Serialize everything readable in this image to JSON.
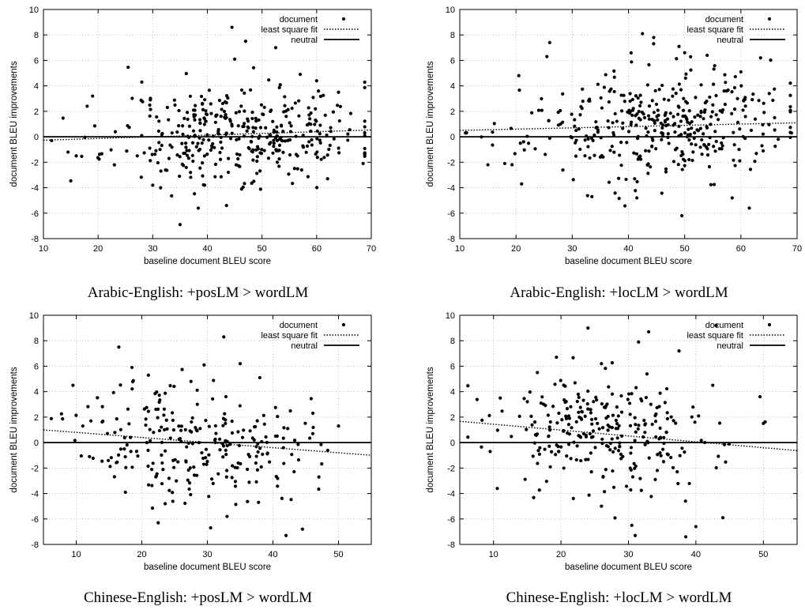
{
  "chart_data": [
    {
      "type": "scatter",
      "caption": "Arabic-English: +posLM > wordLM",
      "xlabel": "baseline document BLEU score",
      "ylabel": "document BLEU improvements",
      "xlim": [
        10,
        70
      ],
      "ylim": [
        -8,
        10
      ],
      "xticks": [
        10,
        20,
        30,
        40,
        50,
        60,
        70
      ],
      "yticks": [
        -8,
        -6,
        -4,
        -2,
        0,
        2,
        4,
        6,
        8,
        10
      ],
      "grid": true,
      "legend_position": "top-right",
      "legend": [
        "document",
        "least square fit",
        "neutral"
      ],
      "fit": {
        "slope": 0.0133,
        "intercept": -0.4
      },
      "seed": 11,
      "n_points": 400,
      "x_mean": 46,
      "x_sd": 11.5,
      "y_sd": 1.9,
      "highlights": [
        [
          44.5,
          8.6
        ],
        [
          52.5,
          7.0
        ],
        [
          47,
          7.5
        ],
        [
          45,
          6.1
        ],
        [
          28,
          4.3
        ],
        [
          57,
          4.9
        ],
        [
          35,
          -6.9
        ],
        [
          43.5,
          -5.4
        ],
        [
          19,
          3.2
        ],
        [
          60,
          4.4
        ],
        [
          39.5,
          -3.8
        ],
        [
          30,
          -3.8
        ],
        [
          68.5,
          -2.1
        ],
        [
          62,
          -3.3
        ],
        [
          11.5,
          -0.3
        ],
        [
          14.5,
          -1.2
        ],
        [
          16,
          -1.5
        ],
        [
          18,
          2.4
        ],
        [
          64,
          3.5
        ],
        [
          48.5,
          -3.5
        ]
      ]
    },
    {
      "type": "scatter",
      "caption": "Arabic-English: +locLM > wordLM",
      "xlabel": "baseline document BLEU score",
      "ylabel": "document BLEU improvements",
      "xlim": [
        10,
        70
      ],
      "ylim": [
        -8,
        10
      ],
      "xticks": [
        10,
        20,
        30,
        40,
        50,
        60,
        70
      ],
      "yticks": [
        -8,
        -6,
        -4,
        -2,
        0,
        2,
        4,
        6,
        8,
        10
      ],
      "grid": true,
      "legend_position": "top-right",
      "legend": [
        "document",
        "least square fit",
        "neutral"
      ],
      "fit": {
        "slope": 0.01,
        "intercept": 0.4
      },
      "seed": 23,
      "n_points": 400,
      "x_mean": 45,
      "x_sd": 11.5,
      "y_sd": 2.1,
      "highlights": [
        [
          42.5,
          8.1
        ],
        [
          44.5,
          7.8
        ],
        [
          26,
          7.4
        ],
        [
          49,
          7.1
        ],
        [
          50,
          6.6
        ],
        [
          54,
          6.4
        ],
        [
          25.5,
          6.3
        ],
        [
          63.5,
          6.2
        ],
        [
          20.5,
          4.8
        ],
        [
          49.5,
          -6.2
        ],
        [
          61.5,
          -5.6
        ],
        [
          41.5,
          -4.8
        ],
        [
          33.5,
          -4.7
        ],
        [
          21,
          -3.7
        ],
        [
          15,
          -2.2
        ],
        [
          18,
          -2.1
        ],
        [
          11,
          0.3
        ],
        [
          69,
          0.3
        ],
        [
          66,
          1.5
        ],
        [
          60,
          5.1
        ]
      ]
    },
    {
      "type": "scatter",
      "caption": "Chinese-English: +posLM > wordLM",
      "xlabel": "baseline document BLEU score",
      "ylabel": "document BLEU improvements",
      "xlim": [
        5,
        55
      ],
      "ylim": [
        -8,
        10
      ],
      "xticks": [
        10,
        20,
        30,
        40,
        50
      ],
      "yticks": [
        -8,
        -6,
        -4,
        -2,
        0,
        2,
        4,
        6,
        8,
        10
      ],
      "grid": true,
      "legend_position": "top-right",
      "legend": [
        "document",
        "least square fit",
        "neutral"
      ],
      "fit": {
        "slope": -0.04,
        "intercept": 1.2
      },
      "seed": 37,
      "n_points": 270,
      "x_mean": 28,
      "x_sd": 8.5,
      "y_sd": 2.3,
      "highlights": [
        [
          32.5,
          8.3
        ],
        [
          16.5,
          7.5
        ],
        [
          18.5,
          5.9
        ],
        [
          29.5,
          6.1
        ],
        [
          35,
          6.2
        ],
        [
          9.5,
          4.5
        ],
        [
          42,
          -7.3
        ],
        [
          44.5,
          -6.8
        ],
        [
          30.5,
          -6.7
        ],
        [
          22.5,
          -6.3
        ],
        [
          33,
          -5.8
        ],
        [
          17.5,
          -3.9
        ],
        [
          47,
          -2.7
        ],
        [
          50,
          1.3
        ],
        [
          11,
          1.3
        ],
        [
          21,
          5.3
        ],
        [
          27.5,
          4.8
        ],
        [
          38,
          5.1
        ]
      ]
    },
    {
      "type": "scatter",
      "caption": "Chinese-English: +locLM > wordLM",
      "xlabel": "baseline document BLEU score",
      "ylabel": "document BLEU improvements",
      "xlim": [
        5,
        55
      ],
      "ylim": [
        -8,
        10
      ],
      "xticks": [
        10,
        20,
        30,
        40,
        50
      ],
      "yticks": [
        -8,
        -6,
        -4,
        -2,
        0,
        2,
        4,
        6,
        8,
        10
      ],
      "grid": true,
      "legend_position": "top-right",
      "legend": [
        "document",
        "least square fit",
        "neutral"
      ],
      "fit": {
        "slope": -0.046,
        "intercept": 1.9
      },
      "seed": 53,
      "n_points": 290,
      "x_mean": 27,
      "x_sd": 8.5,
      "y_sd": 2.3,
      "highlights": [
        [
          24,
          9.0
        ],
        [
          33,
          8.7
        ],
        [
          31.5,
          7.9
        ],
        [
          37.5,
          7.2
        ],
        [
          26,
          6.2
        ],
        [
          16.5,
          5.5
        ],
        [
          38.5,
          -7.4
        ],
        [
          31,
          -7.3
        ],
        [
          40,
          -6.6
        ],
        [
          30.5,
          -6.5
        ],
        [
          44,
          -5.9
        ],
        [
          26,
          -5.0
        ],
        [
          9.5,
          -0.7
        ],
        [
          11,
          3.5
        ],
        [
          49.5,
          3.6
        ],
        [
          50,
          1.5
        ],
        [
          42.5,
          4.5
        ],
        [
          43,
          9.2
        ]
      ]
    }
  ]
}
